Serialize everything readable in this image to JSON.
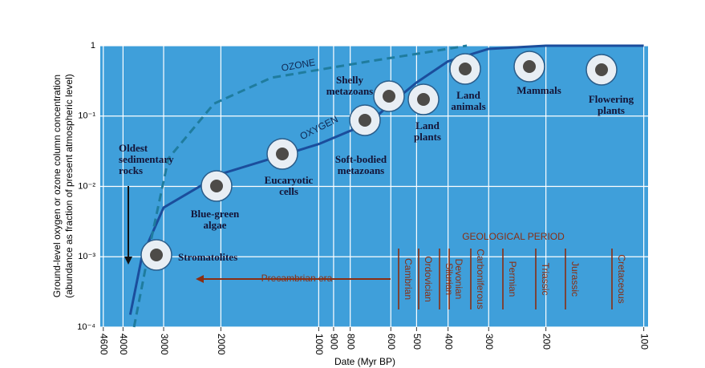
{
  "chart_data": {
    "type": "line",
    "xlabel": "Date (Myr BP)",
    "ylabel": [
      "Ground-level oxygen or ozone column concentration",
      "(abundance as fraction of present atmospheric level)"
    ],
    "xscale": "log",
    "yscale": "log",
    "xlim": [
      4700,
      97
    ],
    "ylim": [
      0.0001,
      1
    ],
    "xticks": [
      4600,
      4000,
      3000,
      2000,
      1000,
      900,
      800,
      600,
      500,
      400,
      300,
      200,
      100
    ],
    "yticks": [
      {
        "value": 0.0001,
        "label": "10⁻⁴"
      },
      {
        "value": 0.001,
        "label": "10⁻³"
      },
      {
        "value": 0.01,
        "label": "10⁻²"
      },
      {
        "value": 0.1,
        "label": "10⁻¹"
      },
      1
    ],
    "grid": true,
    "series": [
      {
        "name": "OXYGEN",
        "color": "#1b4d9c",
        "dash": false,
        "x": [
          3800,
          3500,
          3000,
          2000,
          1000,
          700,
          600,
          500,
          400,
          300,
          200,
          100
        ],
        "values": [
          0.00015,
          0.001,
          0.005,
          0.015,
          0.04,
          0.08,
          0.15,
          0.3,
          0.6,
          0.9,
          1,
          1
        ]
      },
      {
        "name": "OZONE",
        "color": "#1f7c9e",
        "dash": true,
        "x": [
          3700,
          3300,
          2900,
          2100,
          1400,
          700,
          470,
          350
        ],
        "values": [
          0.0001,
          0.0015,
          0.025,
          0.15,
          0.35,
          0.6,
          0.8,
          1
        ]
      }
    ],
    "annotations": [
      [
        "Oldest",
        "sedimentary",
        "rocks"
      ],
      [
        "Stromatolites"
      ],
      [
        "Blue-green",
        "algae"
      ],
      [
        "Eucaryotic",
        "cells"
      ],
      [
        "Soft-bodied",
        "metazoans"
      ],
      [
        "Shelly",
        "metazoans"
      ],
      [
        "Land",
        "plants"
      ],
      [
        "Land",
        "animals"
      ],
      [
        "Mammals"
      ],
      [
        "Flowering",
        "plants"
      ],
      [
        "GEOLOGICAL PERIOD"
      ],
      [
        "Precambrian era"
      ]
    ],
    "periods": [
      "Cambrian",
      "Ordovician",
      "Silurian",
      "Devonian",
      "Carboniferous",
      "Permian",
      "Triassic",
      "Jurassic",
      "Cretaceous"
    ]
  }
}
